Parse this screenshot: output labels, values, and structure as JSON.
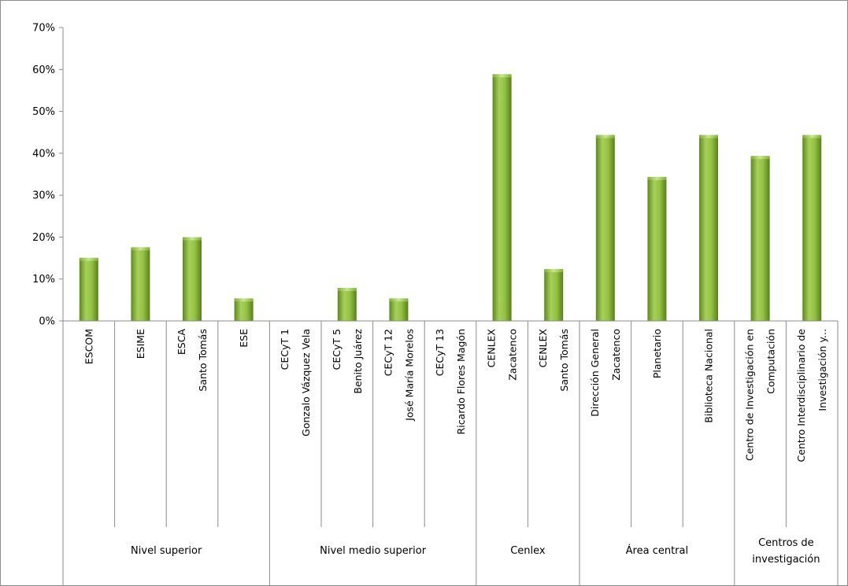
{
  "chart_data": {
    "type": "bar",
    "ylim": [
      0,
      0.7
    ],
    "yticks": [
      "0%",
      "10%",
      "20%",
      "30%",
      "40%",
      "50%",
      "60%",
      "70%"
    ],
    "grid": false,
    "color": "#8ab83a",
    "categories": [
      [
        "ESCOM"
      ],
      [
        "ESIME"
      ],
      [
        "ESCA",
        "Santo Tomás"
      ],
      [
        "ESE"
      ],
      [
        "CECyT 1",
        "Gonzalo Vázquez Vela"
      ],
      [
        "CECyT 5",
        "Benito Juárez"
      ],
      [
        "CECyT 12",
        "José María Morelos"
      ],
      [
        "CECyT 13",
        "Ricardo Flores Magón"
      ],
      [
        "CENLEX",
        "Zacatenco"
      ],
      [
        "CENLEX",
        "Santo Tomás"
      ],
      [
        "Dirección General",
        "Zacatenco"
      ],
      [
        "Planetario"
      ],
      [
        "Biblioteca Nacional"
      ],
      [
        "Centro de Investigación en",
        "Computación"
      ],
      [
        "Centro Interdisciplinario de",
        "Investigación y..."
      ]
    ],
    "values": [
      0.147,
      0.172,
      0.196,
      0.05,
      0,
      0.075,
      0.05,
      0,
      0.585,
      0.12,
      0.44,
      0.34,
      0.44,
      0.39,
      0.44
    ],
    "groups": [
      {
        "label": [
          "Nivel superior"
        ],
        "count": 4
      },
      {
        "label": [
          "Nivel medio superior"
        ],
        "count": 4
      },
      {
        "label": [
          "Cenlex"
        ],
        "count": 2
      },
      {
        "label": [
          "Área central"
        ],
        "count": 3
      },
      {
        "label": [
          "Centros de",
          "investigación"
        ],
        "count": 2
      }
    ]
  }
}
